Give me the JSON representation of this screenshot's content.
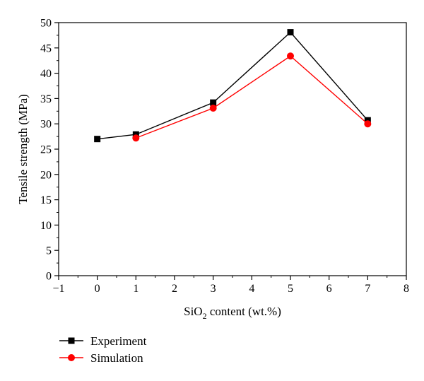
{
  "chart_data": {
    "type": "line",
    "title": "",
    "xlabel": {
      "prefix": "SiO",
      "subscript": "2",
      "suffix": " content (wt.%)"
    },
    "ylabel": "Tensile strength (MPa)",
    "xlim": [
      -1,
      8
    ],
    "ylim": [
      0,
      50
    ],
    "xticks": [
      -1,
      0,
      1,
      2,
      3,
      4,
      5,
      6,
      7,
      8
    ],
    "xtick_labels": [
      "−1",
      "0",
      "1",
      "2",
      "3",
      "4",
      "5",
      "6",
      "7",
      "8"
    ],
    "yticks": [
      0,
      5,
      10,
      15,
      20,
      25,
      30,
      35,
      40,
      45,
      50
    ],
    "ytick_labels": [
      "0",
      "5",
      "10",
      "15",
      "20",
      "25",
      "30",
      "35",
      "40",
      "45",
      "50"
    ],
    "grid": false,
    "legend_position": "below-left",
    "series": [
      {
        "name": "Experiment",
        "color": "#000000",
        "marker": "square",
        "x": [
          0,
          1,
          3,
          5,
          7
        ],
        "y": [
          27.0,
          27.9,
          34.2,
          48.1,
          30.7
        ]
      },
      {
        "name": "Simulation",
        "color": "#ff0000",
        "marker": "circle",
        "x": [
          1,
          3,
          5,
          7
        ],
        "y": [
          27.2,
          33.1,
          43.4,
          30.0
        ]
      }
    ]
  }
}
